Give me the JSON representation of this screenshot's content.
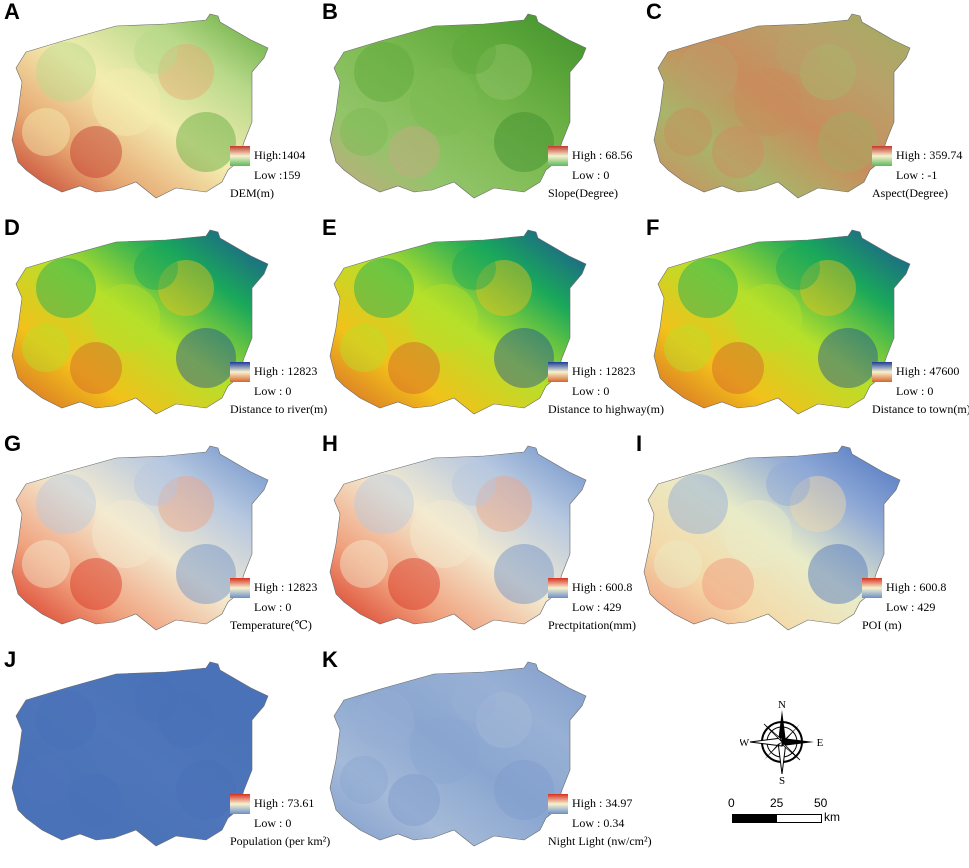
{
  "panels": [
    {
      "letter": "A",
      "title": "DEM(m)",
      "high": "High:1404",
      "low": "Low :159",
      "lg_top": "#c0392b",
      "lg_bot": "#5cb85c",
      "map_colors": [
        "#5ea83a",
        "#b9d98a",
        "#f3edb0",
        "#e7a873",
        "#c2362a"
      ]
    },
    {
      "letter": "B",
      "title": "Slope(Degree)",
      "high": "High : 68.56",
      "low": "Low : 0",
      "lg_top": "#c0392b",
      "lg_bot": "#5cb85c",
      "map_colors": [
        "#3f8f2e",
        "#5ea83a",
        "#7dbb52",
        "#93c46a",
        "#c9a884"
      ]
    },
    {
      "letter": "C",
      "title": "Aspect(Degree)",
      "high": "High : 359.74",
      "low": "Low : -1",
      "lg_top": "#c0392b",
      "lg_bot": "#5cb85c",
      "map_colors": [
        "#9fae62",
        "#b8a26a",
        "#c98c5c",
        "#a8b56a",
        "#d08a60"
      ]
    },
    {
      "letter": "D",
      "title": "Distance to river(m)",
      "high": "High : 12823",
      "low": "Low : 0",
      "lg_top": "#1a3d9c",
      "lg_bot": "#d6642a",
      "map_colors": [
        "#1d4f9a",
        "#1aa85a",
        "#b6e02a",
        "#f2c11a",
        "#d2622a"
      ]
    },
    {
      "letter": "E",
      "title": "Distance to highway(m)",
      "high": "High : 12823",
      "low": "Low : 0",
      "lg_top": "#1a3d9c",
      "lg_bot": "#d6642a",
      "map_colors": [
        "#1d4f9a",
        "#1aa85a",
        "#b6e02a",
        "#f2c11a",
        "#d2622a"
      ]
    },
    {
      "letter": "F",
      "title": "Distance to town(m)",
      "high": "High : 47600",
      "low": "Low : 0",
      "lg_top": "#1a3d9c",
      "lg_bot": "#d6642a",
      "map_colors": [
        "#1d4f9a",
        "#1aa85a",
        "#b6e02a",
        "#f2c11a",
        "#d2622a"
      ]
    },
    {
      "letter": "G",
      "title": "Temperature(℃)",
      "high": "High : 12823",
      "low": "Low : 0",
      "lg_top": "#d7301f",
      "lg_bot": "#6a8fc8",
      "map_colors": [
        "#6a8fc8",
        "#b7c8e0",
        "#f3ead0",
        "#f0a27e",
        "#d7301f"
      ]
    },
    {
      "letter": "H",
      "title": "Prectpitation(mm)",
      "high": "High : 600.8",
      "low": "Low : 429",
      "lg_top": "#d7301f",
      "lg_bot": "#6a8fc8",
      "map_colors": [
        "#6a8fc8",
        "#b7c8e0",
        "#f3ead0",
        "#f0a27e",
        "#d7301f"
      ]
    },
    {
      "letter": "I",
      "title": "POI (m)",
      "high": "High : 600.8",
      "low": "Low : 429",
      "lg_top": "#d7301f",
      "lg_bot": "#6a8fc8",
      "map_colors": [
        "#4a72bf",
        "#8fa9d6",
        "#e9ecc8",
        "#f4d9a8",
        "#f0967a"
      ]
    },
    {
      "letter": "J",
      "title": "Population (per km²)",
      "high": "High : 73.61",
      "low": "Low : 0",
      "lg_top": "#d7301f",
      "lg_bot": "#6a8fc8",
      "map_colors": [
        "#4a72b8",
        "#4a72b8",
        "#4f76ba",
        "#4a72b8",
        "#4a72b8"
      ]
    },
    {
      "letter": "K",
      "title": "Night Light (nw/cm²)",
      "high": "High : 34.97",
      "low": "Low : 0.34",
      "lg_top": "#d7301f",
      "lg_bot": "#6a8fc8",
      "map_colors": [
        "#7f9ccc",
        "#98b0d4",
        "#8aa6d0",
        "#a5bad8",
        "#7f9ccc"
      ]
    }
  ],
  "compass": {
    "n": "N",
    "s": "S",
    "e": "E",
    "w": "W"
  },
  "scale": {
    "t0": "0",
    "t1": "25",
    "t2": "50",
    "unit": "km"
  }
}
